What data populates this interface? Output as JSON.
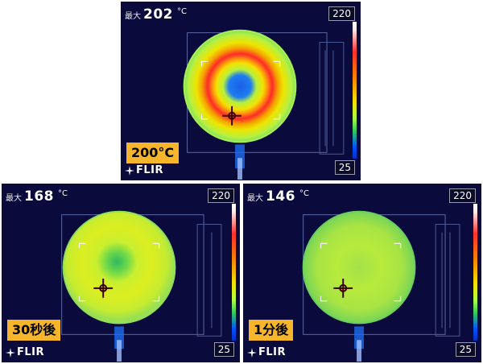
{
  "panels": [
    {
      "max_label": "最大",
      "max_value": "202",
      "unit": "°C",
      "scale_top": "220",
      "scale_bottom": "25",
      "label": "200°C",
      "brand": "FLIR"
    },
    {
      "max_label": "最大",
      "max_value": "168",
      "unit": "°C",
      "scale_top": "220",
      "scale_bottom": "25",
      "label": "30秒後",
      "brand": "FLIR"
    },
    {
      "max_label": "最大",
      "max_value": "146",
      "unit": "°C",
      "scale_top": "220",
      "scale_bottom": "25",
      "label": "1分後",
      "brand": "FLIR"
    }
  ],
  "colors": {
    "background": "#0a0a3c",
    "label_bg": "#f7b52b",
    "hot": "#ff2a2a",
    "warm": "#f5e000",
    "cool": "#0050ff"
  }
}
